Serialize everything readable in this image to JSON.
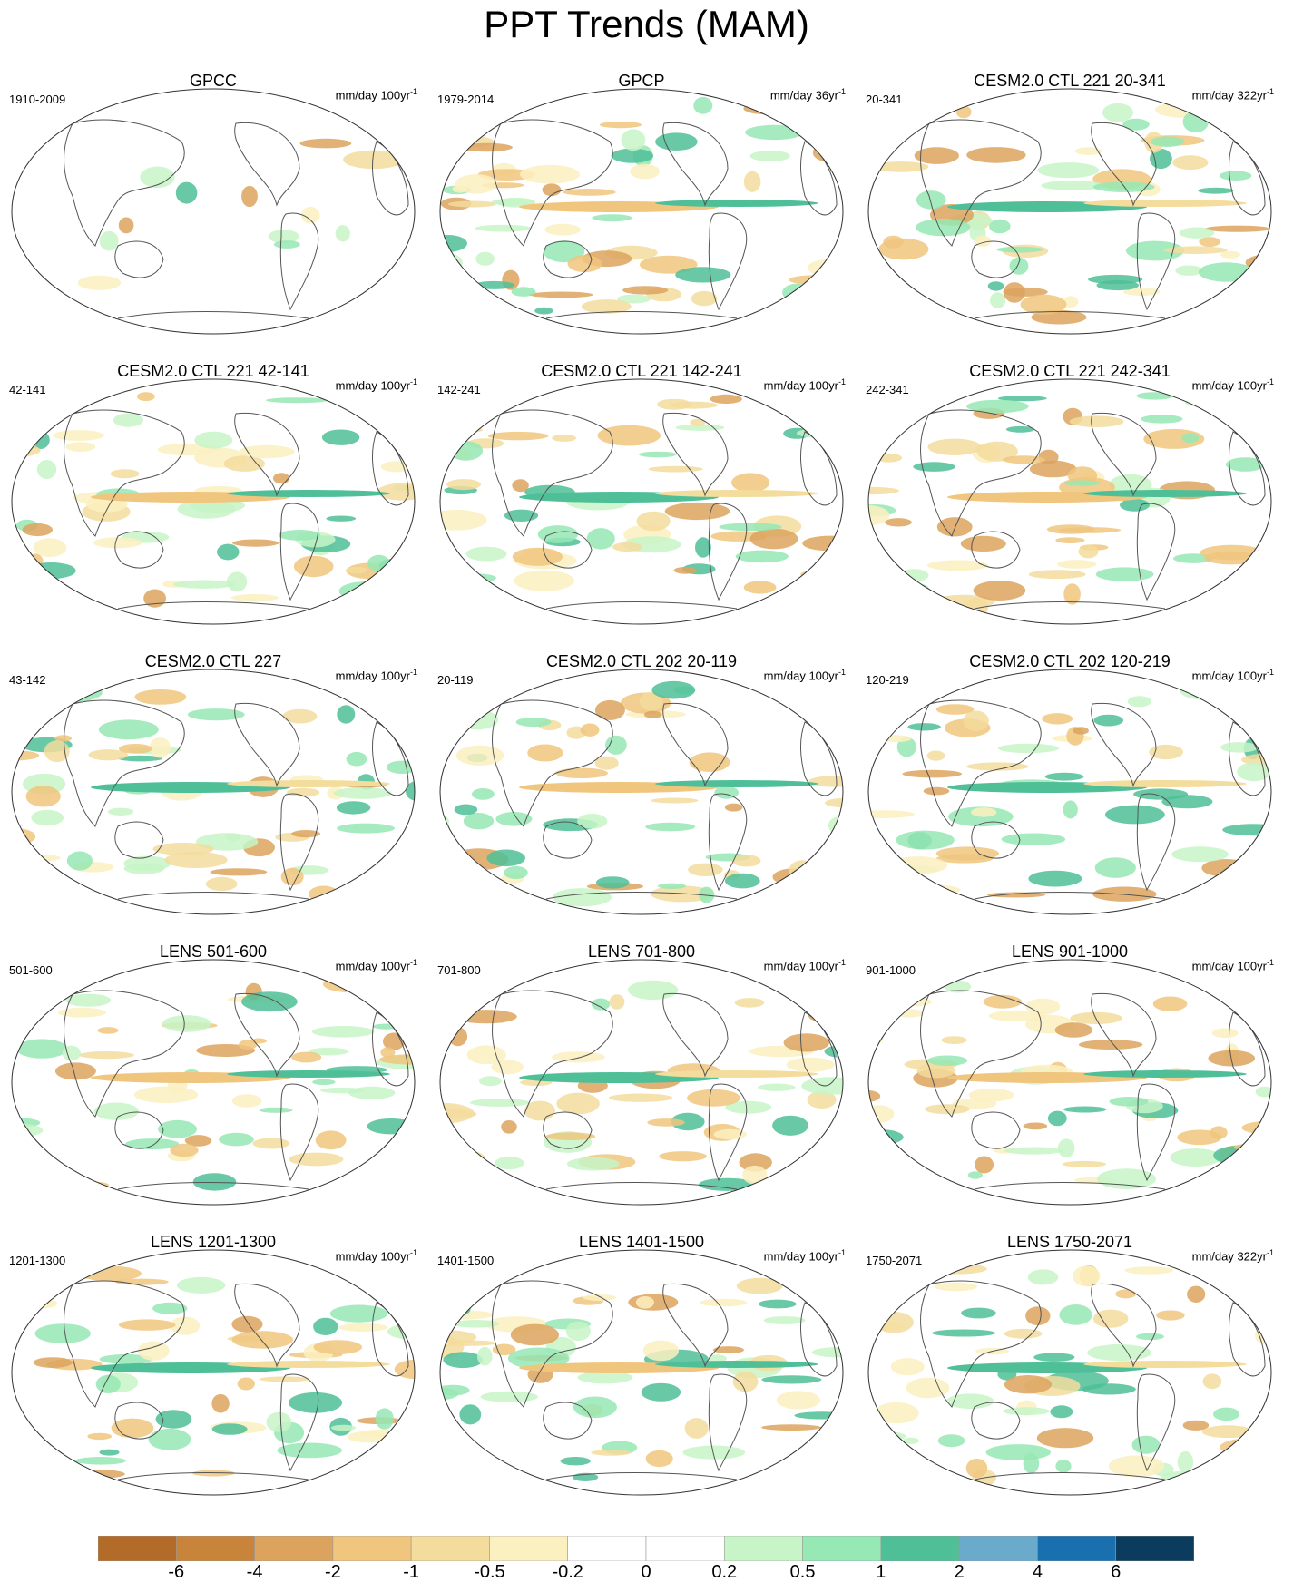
{
  "title": "PPT Trends (MAM)",
  "panels": [
    {
      "title": "GPCC",
      "period": "1910-2009",
      "units": "mm/day 100yr",
      "units_exp": "-1"
    },
    {
      "title": "GPCP",
      "period": "1979-2014",
      "units": "mm/day 36yr",
      "units_exp": "-1"
    },
    {
      "title": "CESM2.0 CTL 221 20-341",
      "period": "20-341",
      "units": "mm/day 322yr",
      "units_exp": "-1"
    },
    {
      "title": "CESM2.0 CTL 221 42-141",
      "period": "42-141",
      "units": "mm/day 100yr",
      "units_exp": "-1"
    },
    {
      "title": "CESM2.0 CTL 221 142-241",
      "period": "142-241",
      "units": "mm/day 100yr",
      "units_exp": "-1"
    },
    {
      "title": "CESM2.0 CTL 221 242-341",
      "period": "242-341",
      "units": "mm/day 100yr",
      "units_exp": "-1"
    },
    {
      "title": "CESM2.0 CTL 227",
      "period": "43-142",
      "units": "mm/day 100yr",
      "units_exp": "-1"
    },
    {
      "title": "CESM2.0 CTL 202 20-119",
      "period": "20-119",
      "units": "mm/day 100yr",
      "units_exp": "-1"
    },
    {
      "title": "CESM2.0 CTL 202 120-219",
      "period": "120-219",
      "units": "mm/day 100yr",
      "units_exp": "-1"
    },
    {
      "title": "LENS 501-600",
      "period": "501-600",
      "units": "mm/day 100yr",
      "units_exp": "-1"
    },
    {
      "title": "LENS 701-800",
      "period": "701-800",
      "units": "mm/day 100yr",
      "units_exp": "-1"
    },
    {
      "title": "LENS 901-1000",
      "period": "901-1000",
      "units": "mm/day 100yr",
      "units_exp": "-1"
    },
    {
      "title": "LENS 1201-1300",
      "period": "1201-1300",
      "units": "mm/day 100yr",
      "units_exp": "-1"
    },
    {
      "title": "LENS 1401-1500",
      "period": "1401-1500",
      "units": "mm/day 100yr",
      "units_exp": "-1"
    },
    {
      "title": "LENS 1750-2071",
      "period": "1750-2071",
      "units": "mm/day 322yr",
      "units_exp": "-1"
    }
  ],
  "colorbar": {
    "colors": [
      "#b36b2a",
      "#c8843a",
      "#dca35e",
      "#f0c57e",
      "#f3dc9c",
      "#fbf0bf",
      "#ffffff",
      "#ffffff",
      "#c7f5c7",
      "#96e8b4",
      "#4fbf98",
      "#6aaacb",
      "#1a6faf",
      "#0b3c5d"
    ],
    "ticks": [
      "-6",
      "-4",
      "-2",
      "-1",
      "-0.5",
      "-0.2",
      "0",
      "0.2",
      "0.5",
      "1",
      "2",
      "4",
      "6"
    ]
  }
}
